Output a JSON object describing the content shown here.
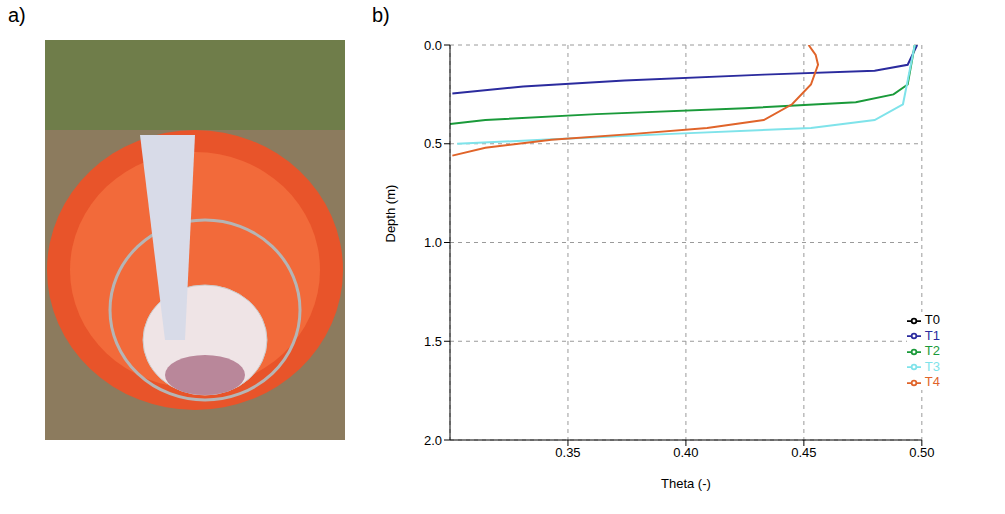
{
  "panel_labels": [
    "a)",
    "b)"
  ],
  "chart_data": {
    "type": "line",
    "x_label": "Theta (-)",
    "y_label": "Depth (m)",
    "xlim": [
      0.3,
      0.5
    ],
    "xticks": [
      0.35,
      {
        "value": 0.4,
        "label": "0.40"
      },
      0.45,
      {
        "value": 0.5,
        "label": "0.50"
      }
    ],
    "ylim": [
      0,
      2
    ],
    "yticks": [
      {
        "value": 0,
        "label": "0.0"
      },
      0.5,
      {
        "value": 1,
        "label": "1.0"
      },
      1.5,
      {
        "value": 2,
        "label": "2.0"
      }
    ],
    "grid": true,
    "legend": "lower right",
    "series": [
      {
        "name": "T0",
        "color": "#000000",
        "x": [],
        "values": []
      },
      {
        "name": "T1",
        "color": "#2b2b9e",
        "x": [
          0.498,
          0.494,
          0.48,
          0.433,
          0.374,
          0.331,
          0.301
        ],
        "values": [
          0,
          0.1,
          0.13,
          0.15,
          0.18,
          0.21,
          0.245
        ]
      },
      {
        "name": "T2",
        "color": "#1a9a3a",
        "x": [
          0.497,
          0.494,
          0.488,
          0.472,
          0.425,
          0.362,
          0.315,
          0.3
        ],
        "values": [
          0,
          0.2,
          0.25,
          0.29,
          0.32,
          0.35,
          0.38,
          0.4
        ]
      },
      {
        "name": "T3",
        "color": "#7fe3ea",
        "x": [
          0.497,
          0.492,
          0.48,
          0.453,
          0.394,
          0.339,
          0.303
        ],
        "values": [
          0,
          0.3,
          0.38,
          0.42,
          0.45,
          0.48,
          0.5
        ]
      },
      {
        "name": "T4",
        "color": "#e0642a",
        "x": [
          0.452,
          0.455,
          0.456,
          0.453,
          0.445,
          0.433,
          0.409,
          0.378,
          0.343,
          0.315,
          0.301
        ],
        "values": [
          0,
          0.05,
          0.1,
          0.2,
          0.3,
          0.38,
          0.42,
          0.45,
          0.48,
          0.52,
          0.56
        ]
      }
    ]
  }
}
